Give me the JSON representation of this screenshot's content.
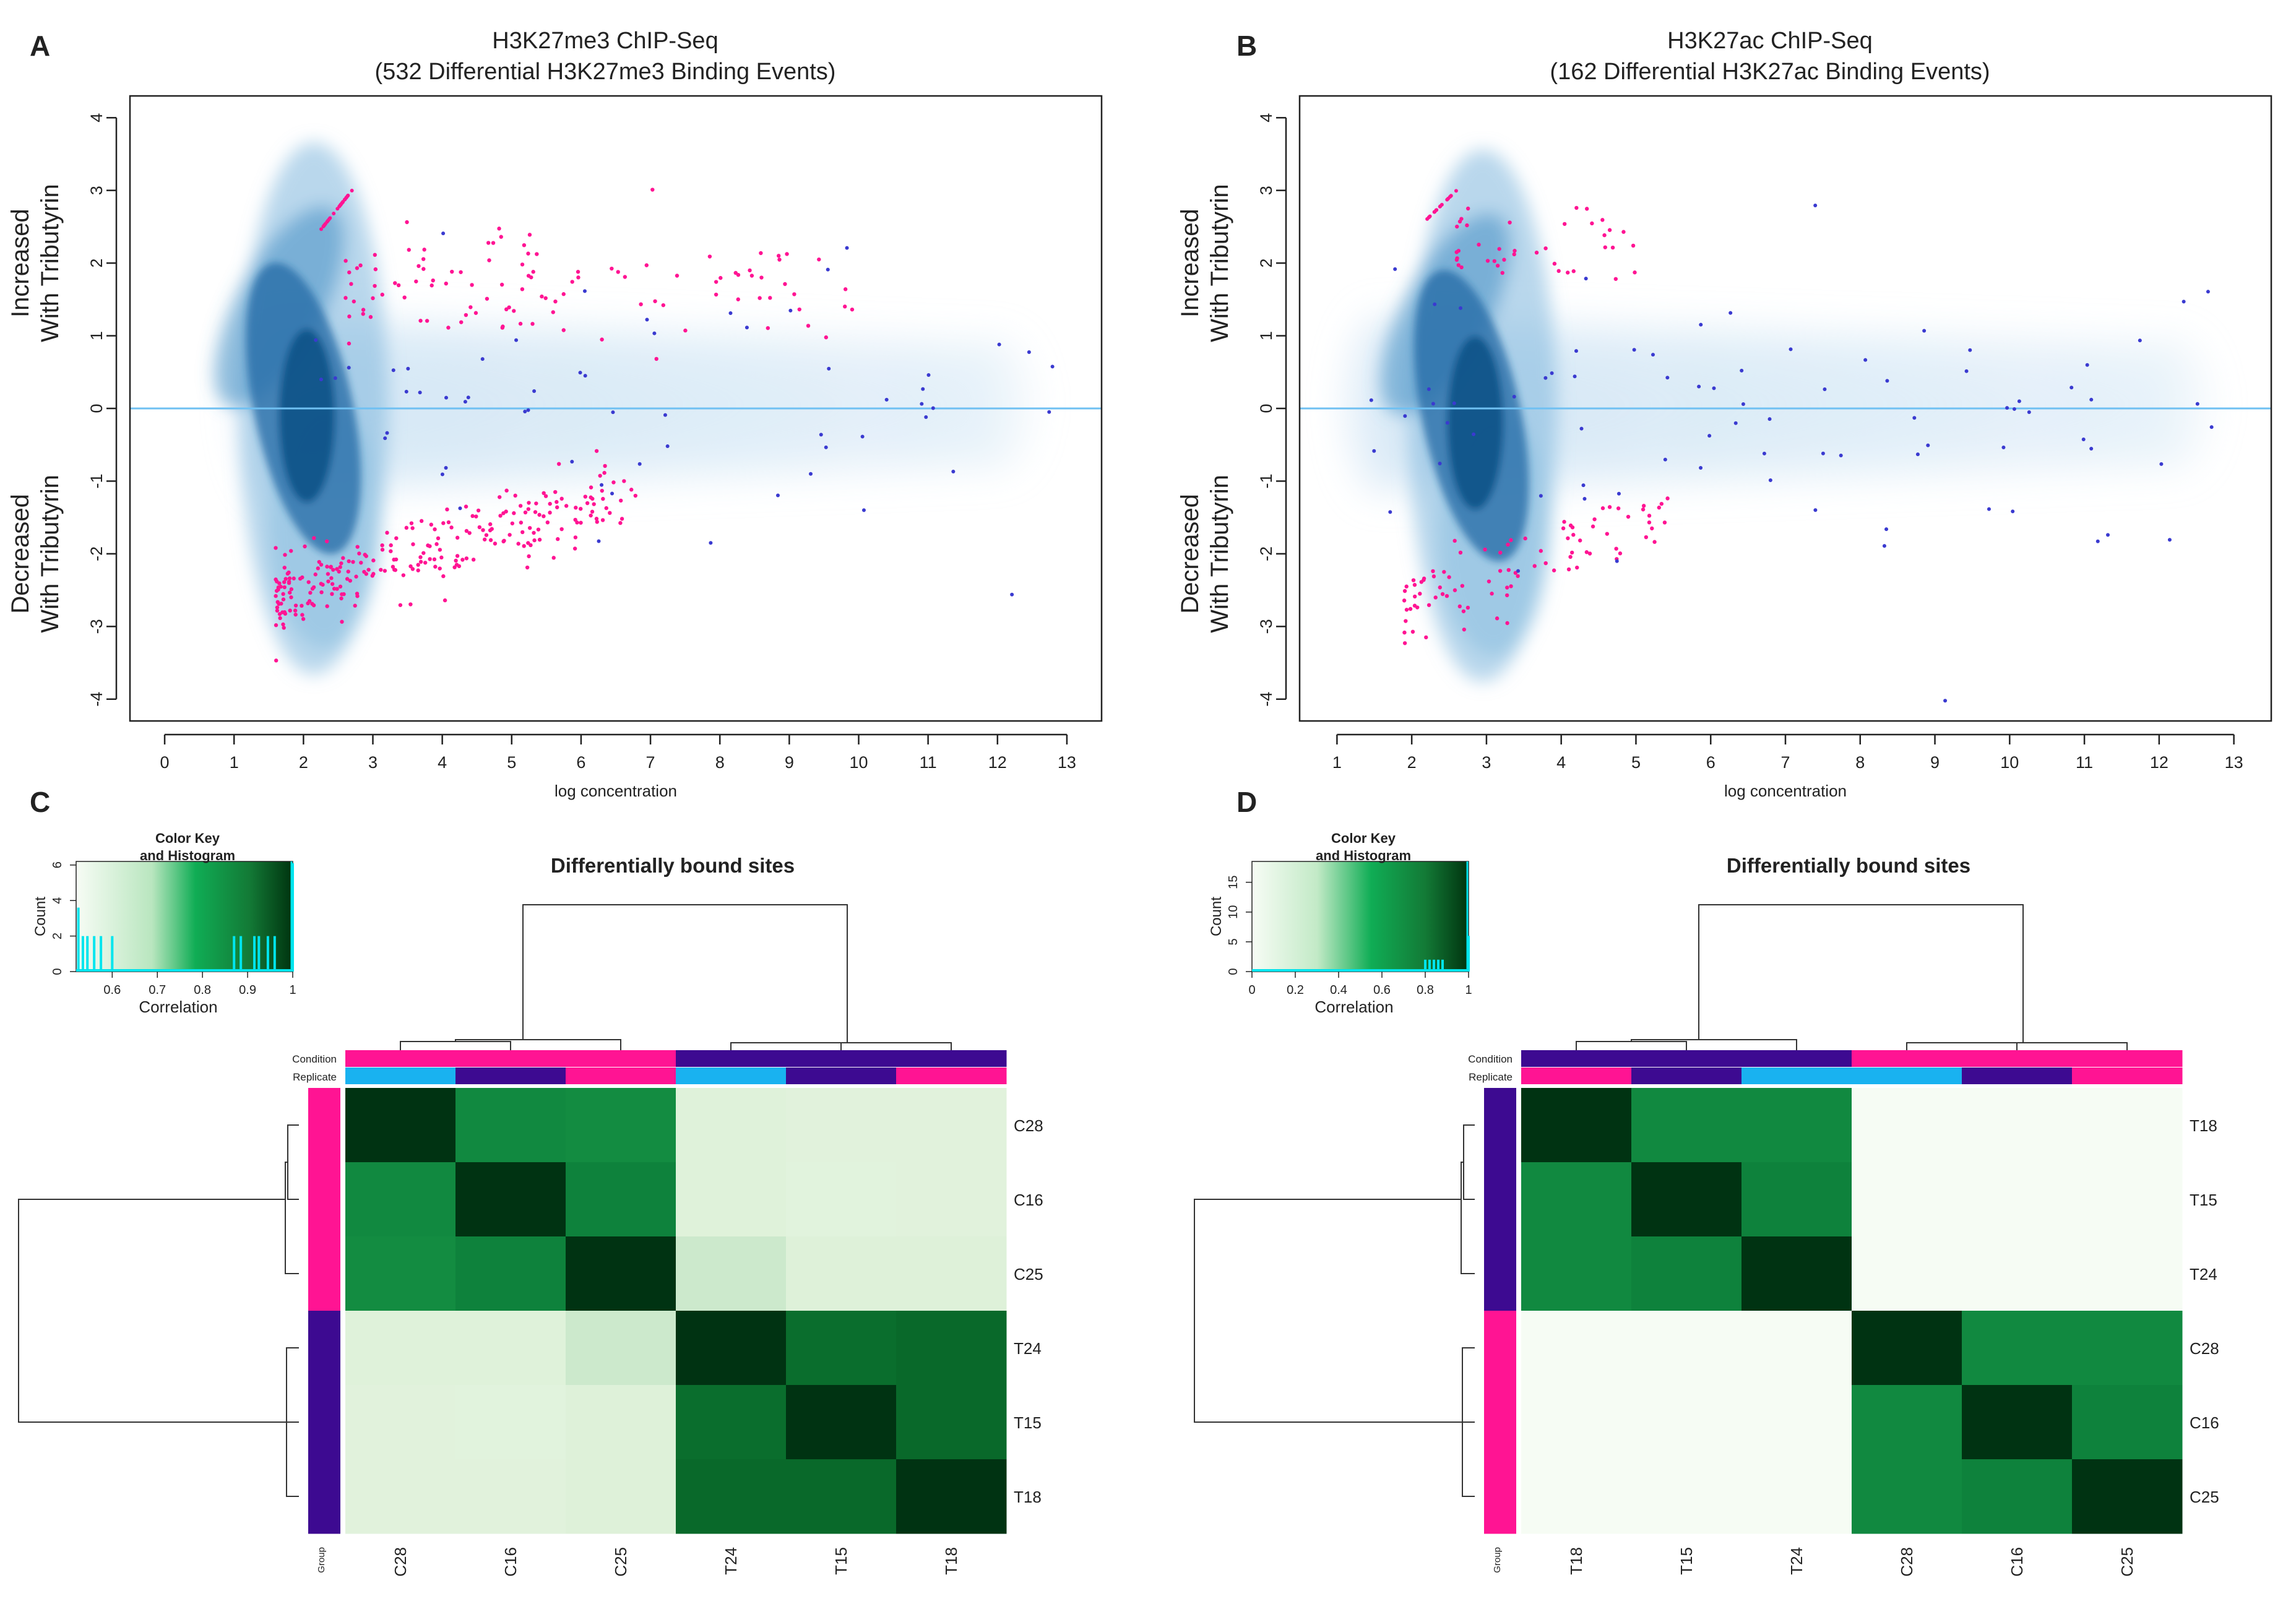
{
  "colors": {
    "pink": "#ff1493",
    "purple": "#3d0a91",
    "skyblue": "#19b2f0",
    "density": "#0a4f86",
    "zeroline": "#6fc0f2",
    "blue_point": "#3a3ad0"
  },
  "panels": {
    "A": {
      "letter": "A",
      "title1": "H3K27me3 ChIP-Seq",
      "title2": "(532 Differential H3K27me3 Binding Events)"
    },
    "B": {
      "letter": "B",
      "title1": "H3K27ac ChIP-Seq",
      "title2": "(162 Differential H3K27ac Binding Events)"
    },
    "C": {
      "letter": "C"
    },
    "D": {
      "letter": "D"
    }
  },
  "chart_data": [
    {
      "id": "A",
      "type": "scatter",
      "title": "H3K27me3 ChIP-Seq (532 Differential H3K27me3 Binding Events)",
      "xlabel": "log concentration",
      "ylabel_up": [
        "Increased",
        "With Tributyrin"
      ],
      "ylabel_down": [
        "Decreased",
        "With Tributyrin"
      ],
      "xlim": [
        -0.5,
        13.5
      ],
      "ylim": [
        -4.3,
        4.3
      ],
      "xticks": [
        0,
        1,
        2,
        3,
        4,
        5,
        6,
        7,
        8,
        9,
        10,
        11,
        12,
        13
      ],
      "yticks": [
        4,
        3,
        2,
        1,
        0,
        -1,
        -2,
        -3,
        -4
      ],
      "reference_line_y": 0,
      "density_core": {
        "x": 2.0,
        "y": 0.0
      }
    },
    {
      "id": "B",
      "type": "scatter",
      "title": "H3K27ac ChIP-Seq (162 Differential H3K27ac Binding Events)",
      "xlabel": "log concentration",
      "ylabel_up": [
        "Increased",
        "With Tributyrin"
      ],
      "ylabel_down": [
        "Decreased",
        "With Tributyrin"
      ],
      "xlim": [
        0.5,
        13.5
      ],
      "ylim": [
        -4.3,
        4.3
      ],
      "xticks": [
        1,
        2,
        3,
        4,
        5,
        6,
        7,
        8,
        9,
        10,
        11,
        12,
        13
      ],
      "yticks": [
        4,
        3,
        2,
        1,
        0,
        -1,
        -2,
        -3,
        -4
      ],
      "reference_line_y": 0,
      "density_core": {
        "x": 2.8,
        "y": -0.1
      }
    },
    {
      "id": "C",
      "type": "heatmap",
      "title": "Differentially bound sites",
      "color_key": {
        "title1": "Color Key",
        "title2": "and Histogram",
        "xlabel": "Correlation",
        "ylabel": "Count",
        "range": [
          0.52,
          1.0
        ],
        "xticks": [
          "0.6",
          "0.7",
          "0.8",
          "0.9",
          "1"
        ],
        "xtick_values": [
          0.6,
          0.7,
          0.8,
          0.9,
          1.0
        ],
        "yticks": [
          "0",
          "2",
          "4",
          "6"
        ],
        "ytick_values": [
          0,
          2,
          4,
          6
        ],
        "ymax": 6.2
      },
      "annotation_labels": {
        "condition": "Condition",
        "replicate": "Replicate",
        "group": "Group"
      },
      "columns": [
        "C28",
        "C16",
        "C25",
        "T24",
        "T15",
        "T18"
      ],
      "rows": [
        "C28",
        "C16",
        "C25",
        "T24",
        "T15",
        "T18"
      ],
      "condition": [
        "C",
        "C",
        "C",
        "T",
        "T",
        "T"
      ],
      "replicate": [
        1,
        2,
        3,
        1,
        2,
        3
      ],
      "group": [
        "C",
        "C",
        "C",
        "T",
        "T",
        "T"
      ],
      "values": [
        [
          1.0,
          0.88,
          0.87,
          0.58,
          0.56,
          0.56
        ],
        [
          0.88,
          1.0,
          0.9,
          0.58,
          0.55,
          0.56
        ],
        [
          0.87,
          0.9,
          1.0,
          0.62,
          0.6,
          0.6
        ],
        [
          0.58,
          0.58,
          0.62,
          1.0,
          0.94,
          0.95
        ],
        [
          0.56,
          0.55,
          0.6,
          0.94,
          1.0,
          0.95
        ],
        [
          0.56,
          0.56,
          0.6,
          0.95,
          0.95,
          1.0
        ]
      ]
    },
    {
      "id": "D",
      "type": "heatmap",
      "title": "Differentially bound sites",
      "color_key": {
        "title1": "Color Key",
        "title2": "and Histogram",
        "xlabel": "Correlation",
        "ylabel": "Count",
        "range": [
          0.0,
          1.0
        ],
        "xticks": [
          "0",
          "0.2",
          "0.4",
          "0.6",
          "0.8",
          "1"
        ],
        "xtick_values": [
          0,
          0.2,
          0.4,
          0.6,
          0.8,
          1.0
        ],
        "yticks": [
          "0",
          "5",
          "10",
          "15"
        ],
        "ytick_values": [
          0,
          5,
          10,
          15
        ],
        "ymax": 18.5
      },
      "annotation_labels": {
        "condition": "Condition",
        "replicate": "Replicate",
        "group": "Group"
      },
      "columns": [
        "T18",
        "T15",
        "T24",
        "C28",
        "C16",
        "C25"
      ],
      "rows": [
        "T18",
        "T15",
        "T24",
        "C28",
        "C16",
        "C25"
      ],
      "condition": [
        "T",
        "T",
        "T",
        "C",
        "C",
        "C"
      ],
      "replicate": [
        3,
        2,
        1,
        1,
        2,
        3
      ],
      "group": [
        "T",
        "T",
        "T",
        "C",
        "C",
        "C"
      ],
      "values": [
        [
          1.0,
          0.88,
          0.88,
          0.02,
          0.02,
          0.02
        ],
        [
          0.88,
          1.0,
          0.9,
          0.02,
          0.02,
          0.02
        ],
        [
          0.88,
          0.9,
          1.0,
          0.02,
          0.02,
          0.02
        ],
        [
          0.02,
          0.02,
          0.02,
          1.0,
          0.88,
          0.88
        ],
        [
          0.02,
          0.02,
          0.02,
          0.88,
          1.0,
          0.9
        ],
        [
          0.02,
          0.02,
          0.02,
          0.88,
          0.9,
          1.0
        ]
      ]
    }
  ]
}
